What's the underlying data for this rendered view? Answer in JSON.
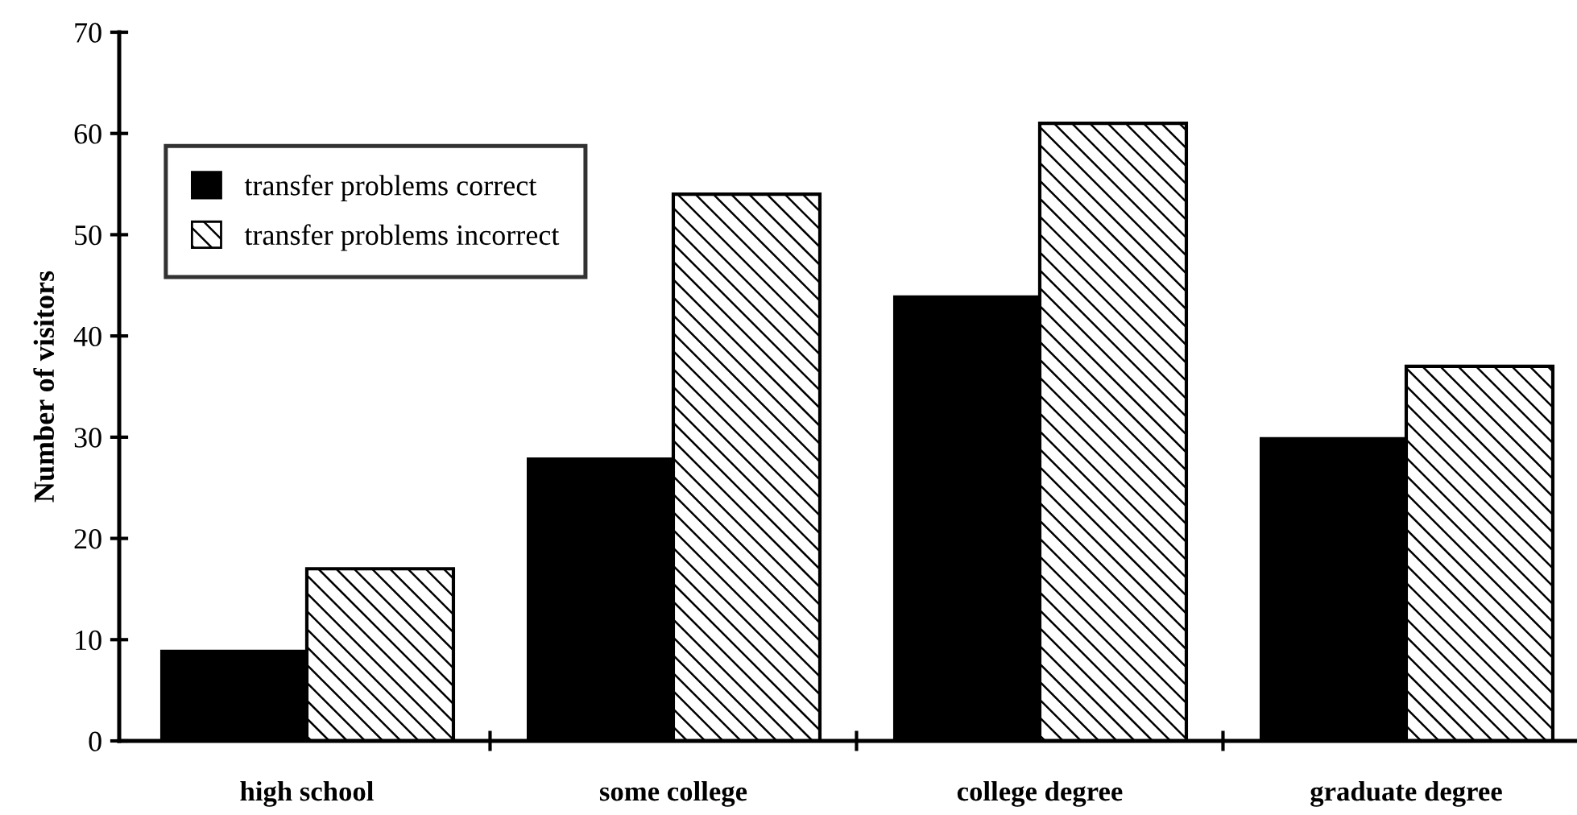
{
  "chart_data": {
    "type": "bar",
    "ylabel": "Number of visitors",
    "categories": [
      "high school",
      "some college",
      "college degree",
      "graduate degree"
    ],
    "series": [
      {
        "name": "transfer problems correct",
        "color": "#000000",
        "values": [
          9,
          28,
          44,
          30
        ]
      },
      {
        "name": "transfer problems incorrect",
        "color": "#ffffff",
        "values": [
          17,
          54,
          61,
          37
        ]
      }
    ],
    "ylim": [
      0,
      70
    ],
    "yticks": [
      0,
      10,
      20,
      30,
      40,
      50,
      60,
      70
    ],
    "grid": false,
    "legend": "top left"
  }
}
